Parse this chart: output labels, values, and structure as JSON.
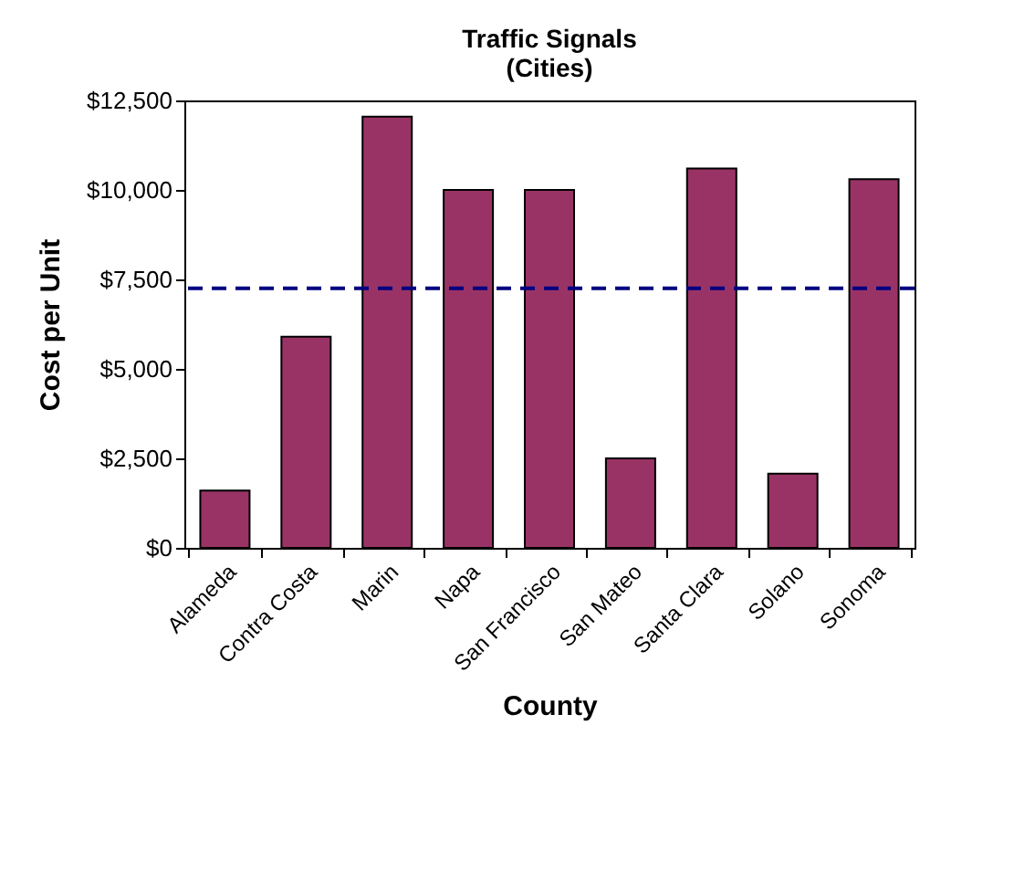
{
  "chart_data": {
    "type": "bar",
    "title": [
      "Traffic Signals",
      "(Cities)"
    ],
    "xlabel": "County",
    "ylabel": "Cost per Unit",
    "categories": [
      "Alameda",
      "Contra Costa",
      "Marin",
      "Napa",
      "San Francisco",
      "San Mateo",
      "Santa Clara",
      "Solano",
      "Sonoma"
    ],
    "values": [
      1600,
      5900,
      12050,
      10000,
      10000,
      2500,
      10600,
      2070,
      10300
    ],
    "color": "#993366",
    "ylim": [
      0,
      12500
    ],
    "yticks": [
      {
        "value": 0,
        "label": "$0"
      },
      {
        "value": 2500,
        "label": "$2,500"
      },
      {
        "value": 5000,
        "label": "$5,000"
      },
      {
        "value": 7500,
        "label": "$7,500"
      },
      {
        "value": 10000,
        "label": "$10,000"
      },
      {
        "value": 12500,
        "label": "$12,500"
      }
    ],
    "ref_lines": [
      {
        "axis": "y",
        "value": 7250,
        "label": null,
        "color": "#000080",
        "line_style": "dashed"
      }
    ],
    "grid": false
  }
}
